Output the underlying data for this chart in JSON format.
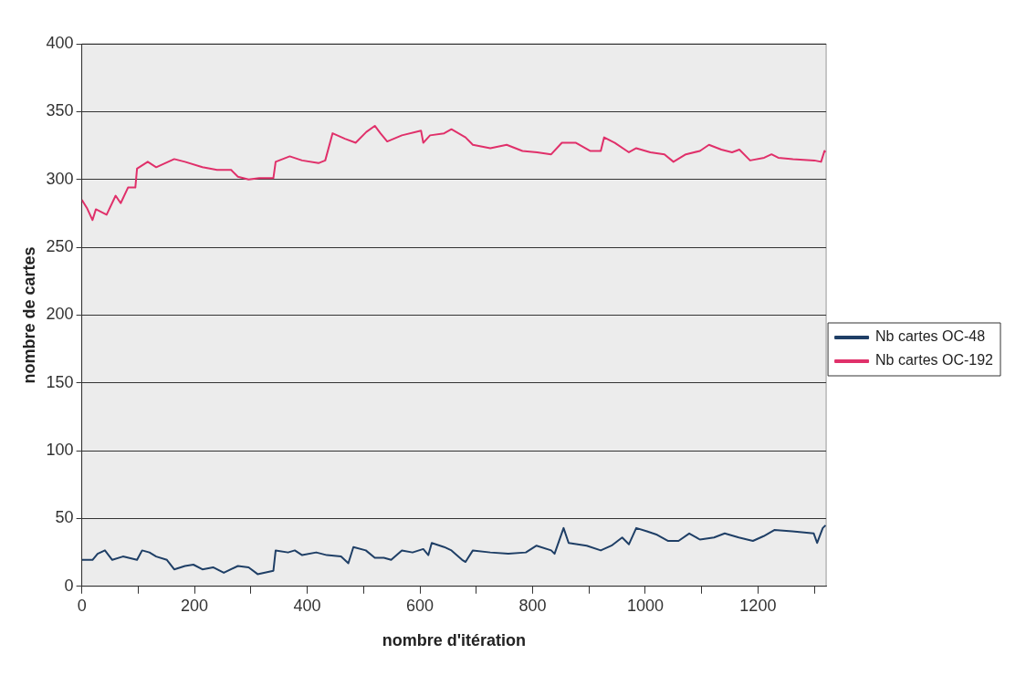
{
  "chart_data": {
    "type": "line",
    "xlabel": "nombre d'itération",
    "ylabel": "nombre de cartes",
    "xlim": [
      0,
      1321
    ],
    "ylim": [
      0,
      400
    ],
    "xticks": [
      0,
      {
        "value": 100,
        "label": null
      },
      200,
      {
        "value": 300,
        "label": null
      },
      400,
      {
        "value": 500,
        "label": null
      },
      600,
      {
        "value": 700,
        "label": null
      },
      800,
      {
        "value": 900,
        "label": null
      },
      1000,
      {
        "value": 1100,
        "label": null
      },
      1200,
      {
        "value": 1300,
        "label": null
      }
    ],
    "yticks": [
      0,
      50,
      100,
      150,
      200,
      250,
      300,
      350,
      400
    ],
    "grid": "y",
    "legend": "right",
    "marker": "none",
    "line_style": "solid",
    "series": [
      {
        "name": "Nb cartes OC-48",
        "color": "#1f3f66",
        "x": [
          0,
          19,
          28,
          41,
          54,
          73,
          98,
          107,
          120,
          132,
          151,
          164,
          183,
          198,
          214,
          233,
          252,
          277,
          296,
          312,
          340,
          344,
          366,
          378,
          391,
          416,
          435,
          460,
          473,
          482,
          504,
          520,
          536,
          549,
          568,
          587,
          606,
          615,
          621,
          643,
          656,
          675,
          681,
          694,
          725,
          757,
          788,
          807,
          833,
          839,
          855,
          864,
          896,
          921,
          940,
          959,
          971,
          984,
          1003,
          1021,
          1040,
          1059,
          1078,
          1097,
          1122,
          1141,
          1166,
          1191,
          1210,
          1229,
          1261,
          1299,
          1305,
          1315,
          1320
        ],
        "values": [
          19.5,
          19.5,
          24,
          26.5,
          19.5,
          22,
          19.5,
          26.5,
          25,
          22,
          19.5,
          12.5,
          15,
          16,
          12.5,
          14,
          10,
          15,
          14,
          9,
          11.5,
          26.5,
          25,
          26.5,
          23,
          25,
          23,
          22,
          17,
          29,
          26.5,
          21,
          21,
          19.5,
          26.5,
          25,
          27.5,
          23,
          32,
          29,
          26.5,
          19.5,
          18,
          26.5,
          25,
          24,
          25,
          30,
          26.5,
          24,
          43,
          32,
          30,
          26.5,
          30,
          36,
          31,
          43,
          40.5,
          38,
          33.5,
          33.5,
          39,
          34.5,
          36,
          39,
          36,
          33.5,
          37,
          41.5,
          40.5,
          39,
          32,
          43,
          45
        ]
      },
      {
        "name": "Nb cartes OC-192",
        "color": "#e0306a",
        "x": [
          0,
          9,
          19,
          25,
          44,
          60,
          69,
          82,
          95,
          98,
          117,
          132,
          164,
          183,
          214,
          240,
          265,
          277,
          296,
          315,
          340,
          344,
          369,
          391,
          420,
          432,
          445,
          467,
          486,
          505,
          520,
          530,
          542,
          568,
          602,
          606,
          618,
          643,
          656,
          681,
          694,
          725,
          754,
          782,
          808,
          833,
          852,
          877,
          902,
          921,
          927,
          946,
          971,
          984,
          1009,
          1034,
          1050,
          1072,
          1097,
          1113,
          1135,
          1154,
          1167,
          1186,
          1211,
          1224,
          1236,
          1262,
          1300,
          1312,
          1318,
          1320
        ],
        "values": [
          285,
          279,
          270,
          278,
          274,
          288,
          282.5,
          294,
          294,
          308,
          313,
          309,
          315,
          313,
          309,
          307,
          307,
          302,
          300,
          301,
          301,
          313,
          317,
          314,
          312,
          314,
          334,
          330,
          327,
          335,
          339.5,
          334,
          328,
          332.5,
          336,
          327,
          332.5,
          334,
          337,
          331,
          325.5,
          323,
          325.5,
          321,
          320,
          318.5,
          327,
          327,
          321,
          321,
          331,
          327,
          320,
          323,
          320,
          318.5,
          313,
          318.5,
          321,
          325.5,
          322,
          320,
          322,
          314,
          316,
          318.5,
          316,
          315,
          314,
          313,
          321,
          320
        ]
      }
    ]
  }
}
